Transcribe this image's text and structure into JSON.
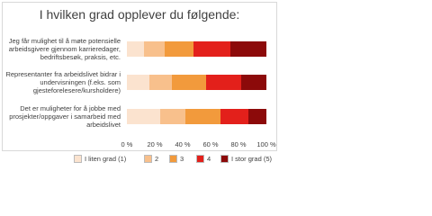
{
  "chart_data": {
    "type": "stacked-bar-horizontal",
    "title": "I hvilken grad opplever du følgende:",
    "categories": [
      "Jeg får mulighet til å møte potensielle arbeidsgivere gjennom karrieredager, bedriftsbesøk, praksis, etc.",
      "Representanter fra arbeidslivet bidrar i undervisningen (f.eks. som gjesteforelesere/kursholdere)",
      "Det er muligheter for å jobbe med prosjekter/oppgaver i samarbeid med arbeidslivet"
    ],
    "series": [
      {
        "name": "I liten grad (1)",
        "color": "#fbe3cf",
        "values": [
          12,
          16,
          24
        ]
      },
      {
        "name": "2",
        "color": "#f8c08c",
        "values": [
          15,
          16,
          18
        ]
      },
      {
        "name": "3",
        "color": "#f29a3c",
        "values": [
          21,
          25,
          25
        ]
      },
      {
        "name": "4",
        "color": "#e3201b",
        "values": [
          26,
          25,
          20
        ]
      },
      {
        "name": "I stor grad (5)",
        "color": "#8c0a0a",
        "values": [
          26,
          18,
          13
        ]
      }
    ],
    "xlim": [
      0,
      100
    ],
    "xticks": [
      {
        "value": 0,
        "label": "0 %"
      },
      {
        "value": 20,
        "label": "20 %"
      },
      {
        "value": 40,
        "label": "40 %"
      },
      {
        "value": 60,
        "label": "60 %"
      },
      {
        "value": 80,
        "label": "80 %"
      },
      {
        "value": 100,
        "label": "100 %"
      }
    ],
    "legend": "bottom"
  }
}
